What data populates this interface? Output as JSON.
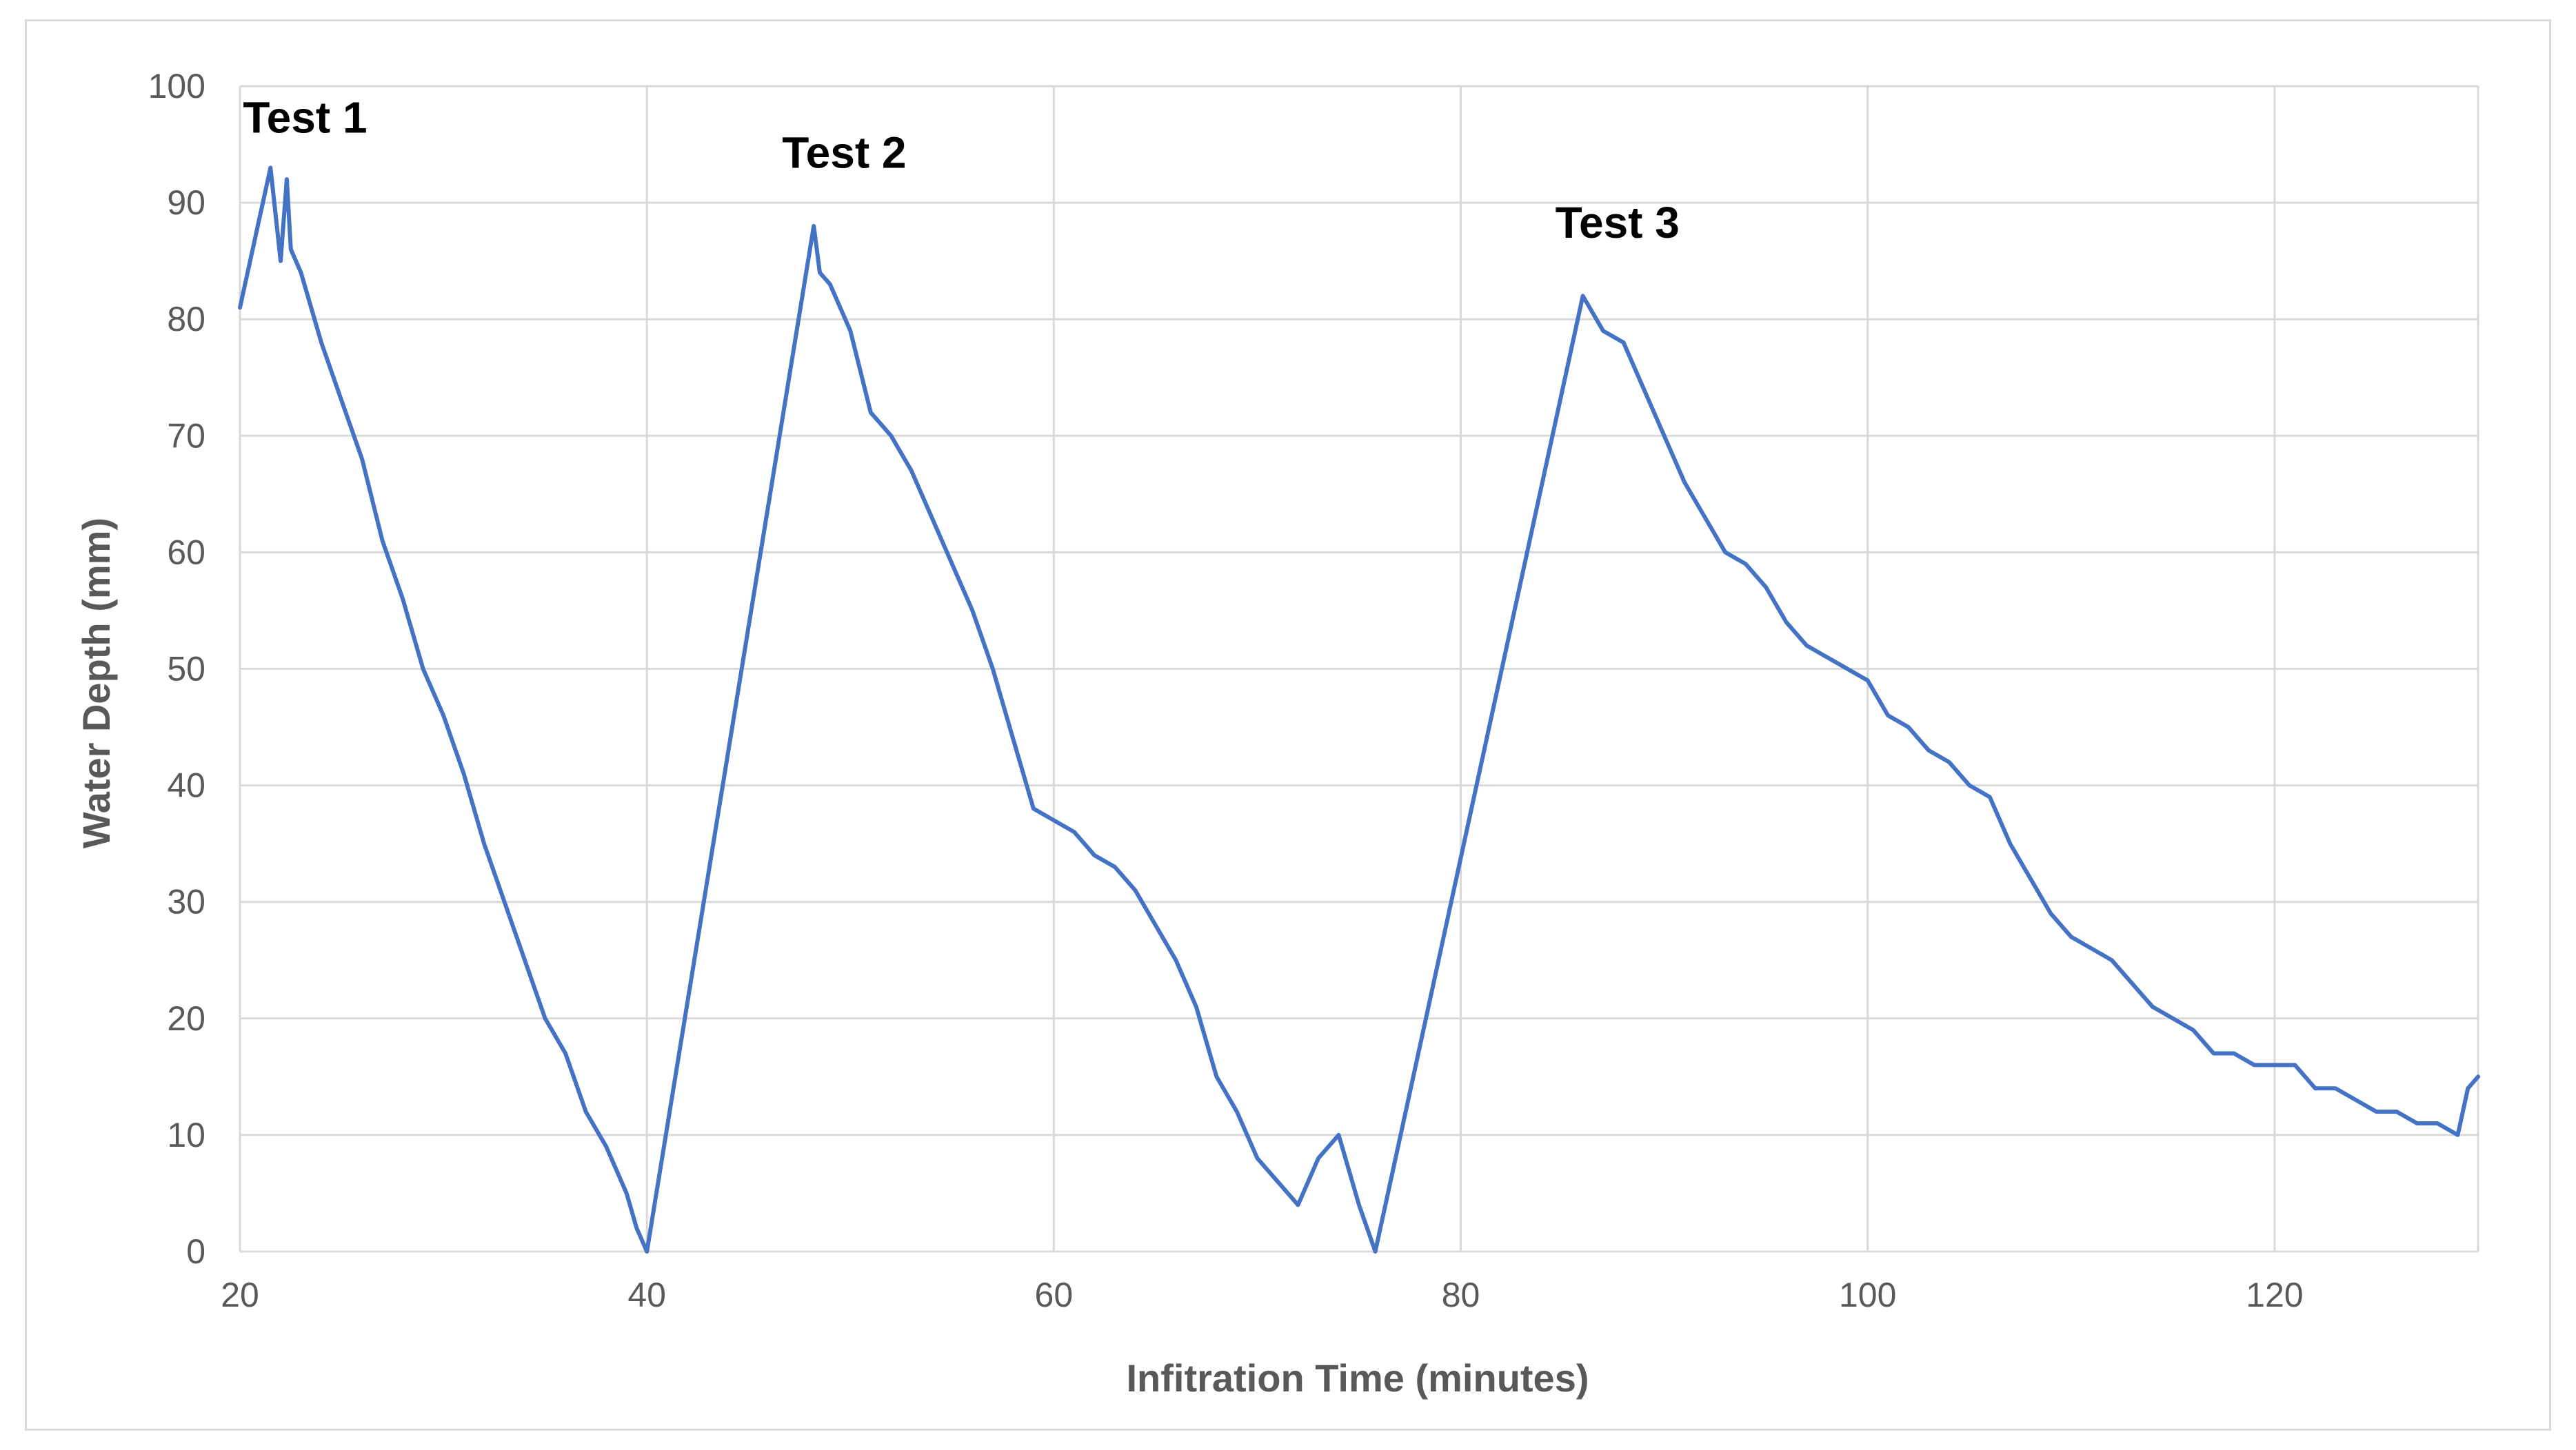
{
  "chart_data": {
    "type": "line",
    "title": "",
    "xlabel": "Infitration Time (minutes)",
    "ylabel": "Water Depth (mm)",
    "xlim": [
      20,
      130
    ],
    "ylim": [
      0,
      100
    ],
    "xticks": [
      20,
      40,
      60,
      80,
      100,
      120
    ],
    "yticks": [
      0,
      10,
      20,
      30,
      40,
      50,
      60,
      70,
      80,
      90,
      100
    ],
    "grid": true,
    "legend": "none",
    "line_color": "#4472c4",
    "series": [
      {
        "x": [
          20,
          21.5,
          22,
          22.3,
          22.5,
          23,
          24,
          25,
          26,
          27,
          28,
          29,
          30,
          31,
          32,
          33,
          34,
          35,
          36,
          37,
          38,
          39,
          39.5,
          40,
          48.2,
          48.5,
          49,
          50,
          51,
          52,
          53,
          54,
          55,
          56,
          57,
          58,
          59,
          60,
          61,
          62,
          63,
          64,
          65,
          66,
          67,
          68,
          69,
          70,
          71,
          72,
          73,
          74,
          75,
          75.8,
          86,
          87,
          88,
          89,
          90,
          91,
          92,
          93,
          94,
          95,
          96,
          97,
          98,
          99,
          100,
          101,
          102,
          103,
          104,
          105,
          106,
          107,
          108,
          109,
          110,
          111,
          112,
          113,
          114,
          115,
          116,
          117,
          118,
          119,
          120,
          121,
          122,
          123,
          124,
          125,
          126,
          127,
          128,
          129,
          129.5,
          130
        ],
        "y": [
          81,
          93,
          85,
          92,
          86,
          84,
          78,
          73,
          68,
          61,
          56,
          50,
          46,
          41,
          35,
          30,
          25,
          20,
          17,
          12,
          9,
          5,
          2,
          0,
          88,
          84,
          83,
          79,
          72,
          70,
          67,
          63,
          59,
          55,
          50,
          44,
          38,
          37,
          36,
          34,
          33,
          31,
          28,
          25,
          21,
          15,
          12,
          8,
          6,
          4,
          8,
          10,
          4,
          0,
          82,
          79,
          78,
          74,
          70,
          66,
          63,
          60,
          59,
          57,
          54,
          52,
          51,
          50,
          49,
          46,
          45,
          43,
          42,
          40,
          39,
          35,
          32,
          29,
          27,
          26,
          25,
          23,
          21,
          20,
          19,
          17,
          17,
          16,
          16,
          16,
          14,
          14,
          13,
          12,
          12,
          11,
          11,
          10,
          14,
          15
        ]
      }
    ],
    "annotations": [
      {
        "text": "Test 1",
        "x": 23.2,
        "y": 96
      },
      {
        "text": "Test 2",
        "x": 49.7,
        "y": 93
      },
      {
        "text": "Test 3",
        "x": 87.7,
        "y": 87
      }
    ]
  }
}
